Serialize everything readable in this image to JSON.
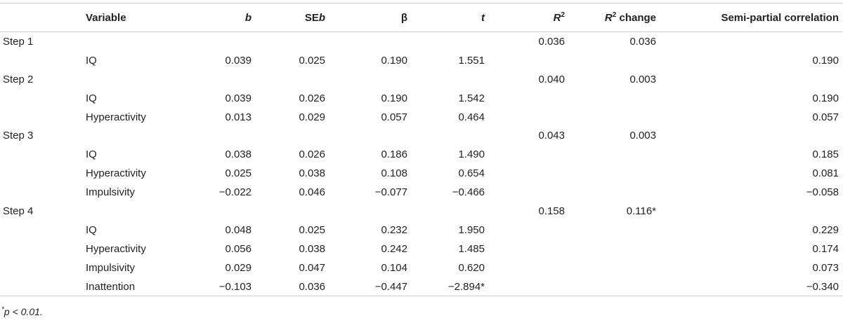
{
  "table": {
    "headers": {
      "variable": "Variable",
      "b": "b",
      "seb_prefix": "SE",
      "seb_suffix": "b",
      "beta": "β",
      "t": "t",
      "r2_base": "R",
      "r2_sup": "2",
      "r2change_base": "R",
      "r2change_sup": "2",
      "r2change_suffix": " change",
      "semipartial": "Semi-partial correlation"
    },
    "rows": [
      {
        "step": "Step 1",
        "variable": "",
        "b": "",
        "seb": "",
        "beta": "",
        "t": "",
        "r2": "0.036",
        "r2change": "0.036",
        "sr": ""
      },
      {
        "step": "",
        "variable": "IQ",
        "b": "0.039",
        "seb": "0.025",
        "beta": "0.190",
        "t": "1.551",
        "r2": "",
        "r2change": "",
        "sr": "0.190"
      },
      {
        "step": "Step 2",
        "variable": "",
        "b": "",
        "seb": "",
        "beta": "",
        "t": "",
        "r2": "0.040",
        "r2change": "0.003",
        "sr": ""
      },
      {
        "step": "",
        "variable": "IQ",
        "b": "0.039",
        "seb": "0.026",
        "beta": "0.190",
        "t": "1.542",
        "r2": "",
        "r2change": "",
        "sr": "0.190"
      },
      {
        "step": "",
        "variable": "Hyperactivity",
        "b": "0.013",
        "seb": "0.029",
        "beta": "0.057",
        "t": "0.464",
        "r2": "",
        "r2change": "",
        "sr": "0.057"
      },
      {
        "step": "Step 3",
        "variable": "",
        "b": "",
        "seb": "",
        "beta": "",
        "t": "",
        "r2": "0.043",
        "r2change": "0.003",
        "sr": ""
      },
      {
        "step": "",
        "variable": "IQ",
        "b": "0.038",
        "seb": "0.026",
        "beta": "0.186",
        "t": "1.490",
        "r2": "",
        "r2change": "",
        "sr": "0.185"
      },
      {
        "step": "",
        "variable": "Hyperactivity",
        "b": "0.025",
        "seb": "0.038",
        "beta": "0.108",
        "t": "0.654",
        "r2": "",
        "r2change": "",
        "sr": "0.081"
      },
      {
        "step": "",
        "variable": "Impulsivity",
        "b": "−0.022",
        "seb": "0.046",
        "beta": "−0.077",
        "t": "−0.466",
        "r2": "",
        "r2change": "",
        "sr": "−0.058"
      },
      {
        "step": "Step 4",
        "variable": "",
        "b": "",
        "seb": "",
        "beta": "",
        "t": "",
        "r2": "0.158",
        "r2change": "0.116*",
        "sr": ""
      },
      {
        "step": "",
        "variable": "IQ",
        "b": "0.048",
        "seb": "0.025",
        "beta": "0.232",
        "t": "1.950",
        "r2": "",
        "r2change": "",
        "sr": "0.229"
      },
      {
        "step": "",
        "variable": "Hyperactivity",
        "b": "0.056",
        "seb": "0.038",
        "beta": "0.242",
        "t": "1.485",
        "r2": "",
        "r2change": "",
        "sr": "0.174"
      },
      {
        "step": "",
        "variable": "Impulsivity",
        "b": "0.029",
        "seb": "0.047",
        "beta": "0.104",
        "t": "0.620",
        "r2": "",
        "r2change": "",
        "sr": "0.073"
      },
      {
        "step": "",
        "variable": "Inattention",
        "b": "−0.103",
        "seb": "0.036",
        "beta": "−0.447",
        "t": "−2.894*",
        "r2": "",
        "r2change": "",
        "sr": "−0.340"
      }
    ]
  },
  "footnote": {
    "marker": "*",
    "text": "p < 0.01."
  }
}
